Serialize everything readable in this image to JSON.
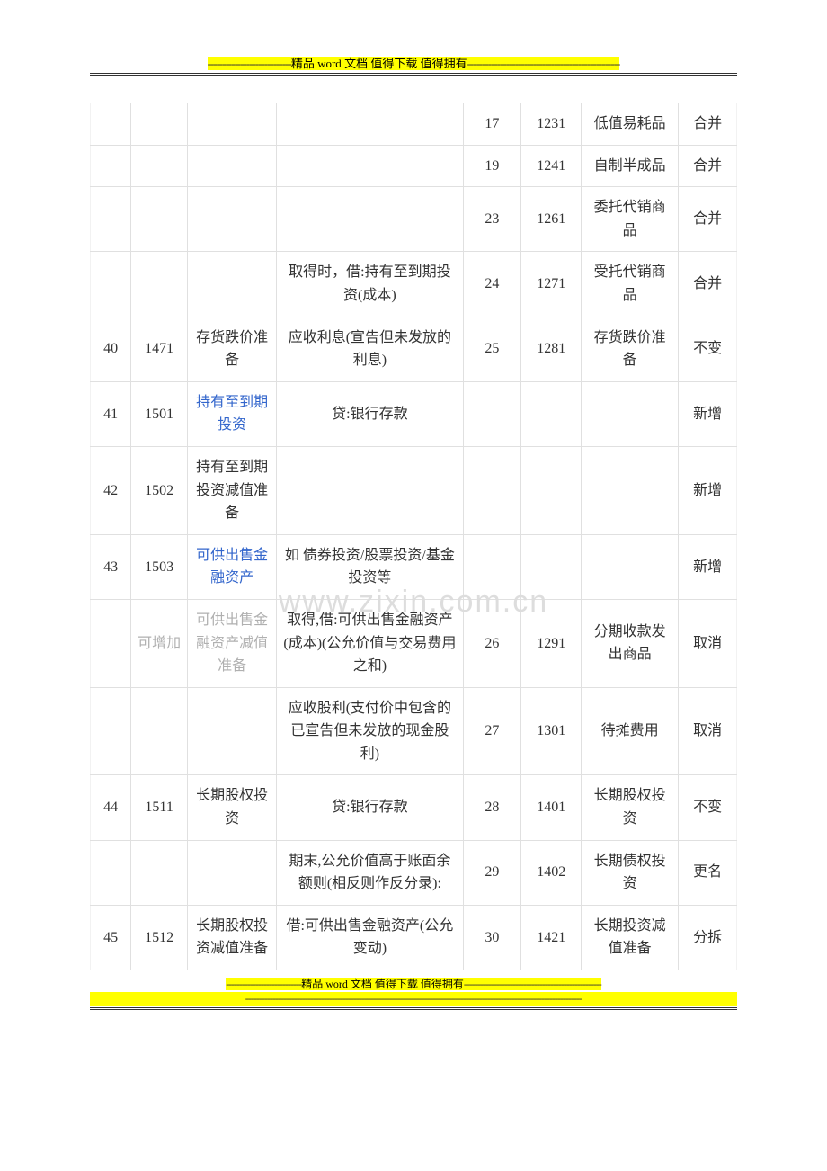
{
  "header": {
    "dash_prefix": "----------------------------",
    "text_parts": [
      "精品 ",
      "word ",
      "文档  值得下载  值得拥有"
    ],
    "dash_suffix": "---------------------------------------------------"
  },
  "footer": {
    "line1": {
      "dash_prefix": "----------------------------",
      "text_parts": [
        "精品 ",
        "word ",
        "文档  值得下载  值得拥有"
      ],
      "dash_suffix": "---------------------------------------------------"
    },
    "line2": "-----------------------------------------------------------------------------------------------------------------------------"
  },
  "watermark": "www.zixin.com.cn",
  "table": {
    "column_widths": [
      "42px",
      "58px",
      "92px",
      "192px",
      "60px",
      "62px",
      "100px",
      "60px"
    ],
    "rows": [
      {
        "c0": "",
        "c1": "",
        "c2": "",
        "c3": "",
        "c4": "17",
        "c5": "1231",
        "c6": "低值易耗品",
        "c7": "合并"
      },
      {
        "c0": "",
        "c1": "",
        "c2": "",
        "c3": "",
        "c4": "19",
        "c5": "1241",
        "c6": "自制半成品",
        "c7": "合并"
      },
      {
        "c0": "",
        "c1": "",
        "c2": "",
        "c3": "",
        "c4": "23",
        "c5": "1261",
        "c6": "委托代销商品",
        "c7": "合并"
      },
      {
        "c0": "",
        "c1": "",
        "c2": "",
        "c3": "取得时，借:持有至到期投资(成本)",
        "c4": "24",
        "c5": "1271",
        "c6": "受托代销商品",
        "c7": "合并"
      },
      {
        "c0": "40",
        "c1": "1471",
        "c2": "存货跌价准备",
        "c3": "应收利息(宣告但未发放的利息)",
        "c4": "25",
        "c5": "1281",
        "c6": "存货跌价准备",
        "c7": "不变"
      },
      {
        "c0": "41",
        "c1": "1501",
        "c2": "持有至到期投资",
        "c2_link": true,
        "c3": "贷:银行存款",
        "c4": "",
        "c5": "",
        "c6": "",
        "c7": "新增"
      },
      {
        "c0": "42",
        "c1": "1502",
        "c2": "持有至到期投资减值准备",
        "c3": "",
        "c4": "",
        "c5": "",
        "c6": "",
        "c7": "新增"
      },
      {
        "c0": "43",
        "c1": "1503",
        "c2": "可供出售金融资产",
        "c2_link": true,
        "c3": "如  债券投资/股票投资/基金投资等",
        "c4": "",
        "c5": "",
        "c6": "",
        "c7": "新增"
      },
      {
        "c0": "",
        "c1": "可增加",
        "c1_grey": true,
        "c2": "可供出售金融资产减值准备",
        "c2_grey": true,
        "c3": "取得,借:可供出售金融资产(成本)(公允价值与交易费用之和)",
        "c4": "26",
        "c5": "1291",
        "c6": "分期收款发出商品",
        "c7": "取消"
      },
      {
        "c0": "",
        "c1": "",
        "c2": "",
        "c3": "应收股利(支付价中包含的已宣告但未发放的现金股利)",
        "c4": "27",
        "c5": "1301",
        "c6": "待摊费用",
        "c7": "取消"
      },
      {
        "c0": "44",
        "c1": "1511",
        "c2": "长期股权投资",
        "c3": "贷:银行存款",
        "c4": "28",
        "c5": "1401",
        "c6": "长期股权投资",
        "c7": "不变"
      },
      {
        "c0": "",
        "c1": "",
        "c2": "",
        "c3": "期末,公允价值高于账面余额则(相反则作反分录):",
        "c4": "29",
        "c5": "1402",
        "c6": "长期债权投资",
        "c7": "更名"
      },
      {
        "c0": "45",
        "c1": "1512",
        "c2": "长期股权投资减值准备",
        "c3": "借:可供出售金融资产(公允变动)",
        "c4": "30",
        "c5": "1421",
        "c6": "长期投资减值准备",
        "c7": "分拆"
      }
    ]
  },
  "colors": {
    "text": "#333333",
    "link": "#3366cc",
    "grey": "#b0b0b0",
    "border": "#e0e0e0",
    "highlight": "#ffff00",
    "watermark": "#dddddd",
    "background": "#ffffff"
  },
  "fonts": {
    "body": "SimSun",
    "table_fontsize": 16,
    "header_fontsize": 13,
    "footer_fontsize": 12
  }
}
